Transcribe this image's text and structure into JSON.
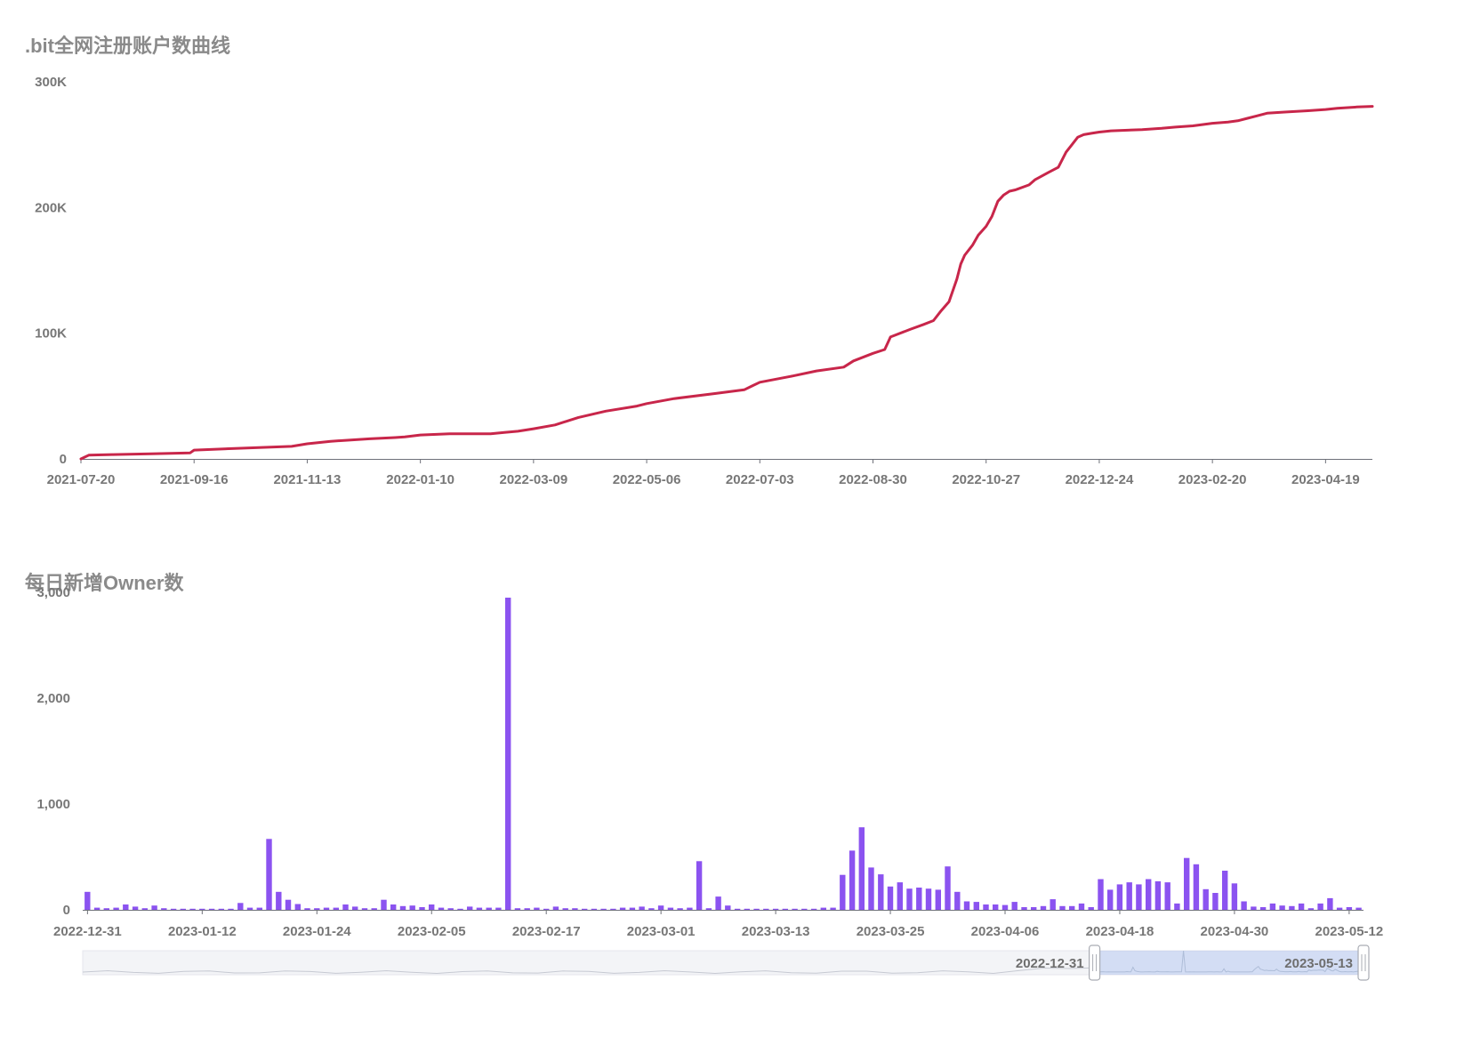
{
  "chart_data": [
    {
      "type": "line",
      "title": ".bit全网注册账户数曲线",
      "color": "#c8264a",
      "xlabel": "",
      "ylabel": "",
      "ylim": [
        0,
        300000
      ],
      "y_ticks": [
        0,
        100000,
        200000,
        300000
      ],
      "y_tick_labels": [
        "0",
        "100K",
        "200K",
        "300K"
      ],
      "x_tick_labels": [
        "2021-07-20",
        "2021-09-16",
        "2021-11-13",
        "2022-01-10",
        "2022-03-09",
        "2022-05-06",
        "2022-07-03",
        "2022-08-30",
        "2022-10-27",
        "2022-12-24",
        "2023-02-20",
        "2023-04-19"
      ],
      "grid": false,
      "x": [
        "2021-07-20",
        "2021-07-24",
        "2021-08-05",
        "2021-08-25",
        "2021-09-14",
        "2021-09-16",
        "2021-10-10",
        "2021-11-05",
        "2021-11-13",
        "2021-11-25",
        "2021-12-15",
        "2021-12-28",
        "2022-01-02",
        "2022-01-10",
        "2022-01-25",
        "2022-02-15",
        "2022-02-22",
        "2022-03-01",
        "2022-03-09",
        "2022-03-20",
        "2022-04-01",
        "2022-04-15",
        "2022-05-01",
        "2022-05-06",
        "2022-05-20",
        "2022-06-10",
        "2022-06-25",
        "2022-06-29",
        "2022-07-03",
        "2022-07-20",
        "2022-08-01",
        "2022-08-15",
        "2022-08-20",
        "2022-08-30",
        "2022-09-05",
        "2022-09-08",
        "2022-09-18",
        "2022-09-25",
        "2022-09-30",
        "2022-10-04",
        "2022-10-08",
        "2022-10-12",
        "2022-10-14",
        "2022-10-16",
        "2022-10-20",
        "2022-10-23",
        "2022-10-27",
        "2022-10-30",
        "2022-11-02",
        "2022-11-05",
        "2022-11-08",
        "2022-11-11",
        "2022-11-18",
        "2022-11-21",
        "2022-11-28",
        "2022-12-03",
        "2022-12-07",
        "2022-12-10",
        "2022-12-13",
        "2022-12-16",
        "2022-12-20",
        "2022-12-24",
        "2022-12-30",
        "2023-01-15",
        "2023-01-25",
        "2023-02-01",
        "2023-02-10",
        "2023-02-20",
        "2023-02-28",
        "2023-03-05",
        "2023-03-10",
        "2023-03-15",
        "2023-03-20",
        "2023-03-30",
        "2023-04-10",
        "2023-04-19",
        "2023-04-25",
        "2023-05-05",
        "2023-05-13"
      ],
      "y": [
        0,
        3000,
        3500,
        4000,
        4800,
        7000,
        8500,
        10000,
        12000,
        14000,
        16000,
        17000,
        17500,
        19000,
        20000,
        20000,
        21000,
        22000,
        24000,
        27000,
        33000,
        38000,
        42000,
        44000,
        48000,
        52000,
        55000,
        58000,
        61000,
        66000,
        70000,
        73000,
        78000,
        84000,
        87000,
        97000,
        103000,
        107000,
        110000,
        118000,
        125000,
        143000,
        155000,
        162000,
        170000,
        178000,
        185000,
        193000,
        205000,
        210000,
        213000,
        214000,
        218000,
        222000,
        228000,
        232000,
        244000,
        250000,
        256000,
        258000,
        259000,
        260000,
        261000,
        262000,
        263000,
        264000,
        265000,
        267000,
        268000,
        269000,
        271000,
        273000,
        275000,
        276000,
        277000,
        278000,
        279000,
        280000,
        280500
      ]
    },
    {
      "type": "bar",
      "title": "每日新增Owner数",
      "color": "#8b53f0",
      "xlabel": "",
      "ylabel": "",
      "ylim": [
        0,
        3000
      ],
      "y_ticks": [
        0,
        1000,
        2000,
        3000
      ],
      "y_tick_labels": [
        "0",
        "1,000",
        "2,000",
        "3,000"
      ],
      "x_tick_labels": [
        "2022-12-31",
        "2023-01-12",
        "2023-01-24",
        "2023-02-05",
        "2023-02-17",
        "2023-03-01",
        "2023-03-13",
        "2023-03-25",
        "2023-04-06",
        "2023-04-18",
        "2023-04-30",
        "2023-05-12"
      ],
      "grid": false,
      "start_date": "2022-12-31",
      "values": [
        170,
        20,
        15,
        20,
        50,
        30,
        15,
        40,
        15,
        10,
        10,
        10,
        10,
        10,
        10,
        10,
        65,
        20,
        20,
        670,
        170,
        95,
        55,
        15,
        15,
        20,
        20,
        50,
        30,
        15,
        15,
        95,
        50,
        35,
        40,
        25,
        50,
        20,
        15,
        10,
        30,
        20,
        20,
        20,
        2950,
        15,
        15,
        20,
        10,
        30,
        15,
        15,
        10,
        10,
        10,
        10,
        20,
        20,
        30,
        15,
        40,
        20,
        15,
        20,
        460,
        15,
        125,
        40,
        10,
        10,
        10,
        10,
        10,
        10,
        10,
        10,
        10,
        20,
        20,
        330,
        560,
        780,
        400,
        335,
        220,
        260,
        200,
        210,
        200,
        190,
        410,
        170,
        80,
        75,
        50,
        50,
        45,
        75,
        25,
        25,
        35,
        100,
        35,
        35,
        60,
        25,
        290,
        190,
        240,
        260,
        240,
        290,
        270,
        260,
        60,
        490,
        430,
        195,
        160,
        370,
        250,
        80,
        30,
        25,
        60,
        40,
        35,
        60,
        15,
        60,
        110,
        20,
        25,
        20
      ],
      "datazoom": {
        "start_label": "2022-12-31",
        "end_label": "2023-05-13"
      }
    }
  ]
}
